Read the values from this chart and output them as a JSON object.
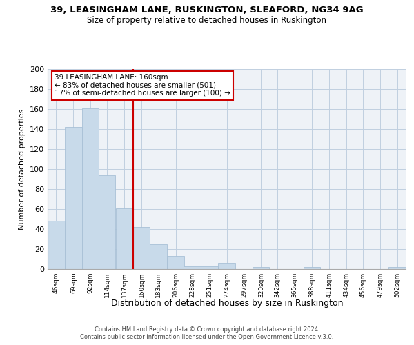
{
  "title": "39, LEASINGHAM LANE, RUSKINGTON, SLEAFORD, NG34 9AG",
  "subtitle": "Size of property relative to detached houses in Ruskington",
  "xlabel": "Distribution of detached houses by size in Ruskington",
  "ylabel": "Number of detached properties",
  "bar_color": "#c8daea",
  "bar_edge_color": "#a8c0d6",
  "reference_line_x": 160,
  "reference_line_color": "#cc0000",
  "annotation_title": "39 LEASINGHAM LANE: 160sqm",
  "annotation_line1": "← 83% of detached houses are smaller (501)",
  "annotation_line2": "17% of semi-detached houses are larger (100) →",
  "annotation_box_edge": "#cc0000",
  "bins_left_edges": [
    46,
    69,
    92,
    114,
    137,
    160,
    183,
    206,
    228,
    251,
    274,
    297,
    320,
    342,
    365,
    388,
    411,
    434,
    456,
    479,
    502
  ],
  "bar_heights": [
    48,
    142,
    161,
    94,
    61,
    42,
    25,
    13,
    3,
    3,
    6,
    0,
    2,
    0,
    0,
    2,
    0,
    0,
    0,
    0,
    2
  ],
  "ylim": [
    0,
    200
  ],
  "yticks": [
    0,
    20,
    40,
    60,
    80,
    100,
    120,
    140,
    160,
    180,
    200
  ],
  "footer1": "Contains HM Land Registry data © Crown copyright and database right 2024.",
  "footer2": "Contains public sector information licensed under the Open Government Licence v.3.0.",
  "background_color": "#eef2f7",
  "grid_color": "#c0cfe0"
}
